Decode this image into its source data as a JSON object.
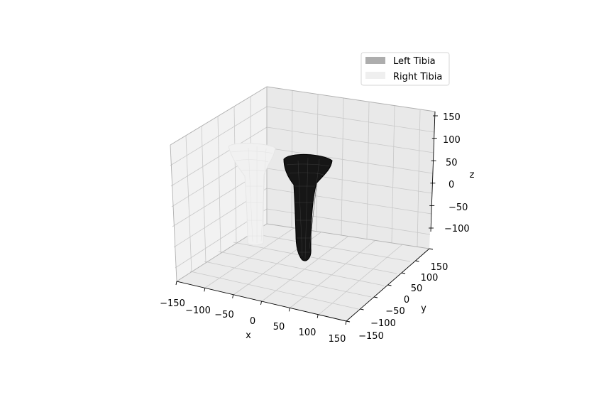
{
  "chart_data": {
    "type": "3d-surface",
    "title": "",
    "xlabel": "x",
    "ylabel": "y",
    "zlabel": "z",
    "xlim": [
      -150,
      150
    ],
    "ylim": [
      -150,
      150
    ],
    "zlim": [
      -150,
      150
    ],
    "x_ticks": [
      "−150",
      "−100",
      "−50",
      "0",
      "50",
      "100",
      "150"
    ],
    "y_ticks": [
      "−150",
      "−100",
      "−50",
      "0",
      "50",
      "100",
      "150"
    ],
    "z_ticks": [
      "−100",
      "−50",
      "0",
      "50",
      "100",
      "150"
    ],
    "grid": true,
    "legend_position": "top-right",
    "series": [
      {
        "name": "Left Tibia",
        "color": "#000000",
        "legend_color": "#adadad"
      },
      {
        "name": "Right Tibia",
        "color": "#f2f2f2",
        "legend_color": "#efefef"
      }
    ]
  }
}
